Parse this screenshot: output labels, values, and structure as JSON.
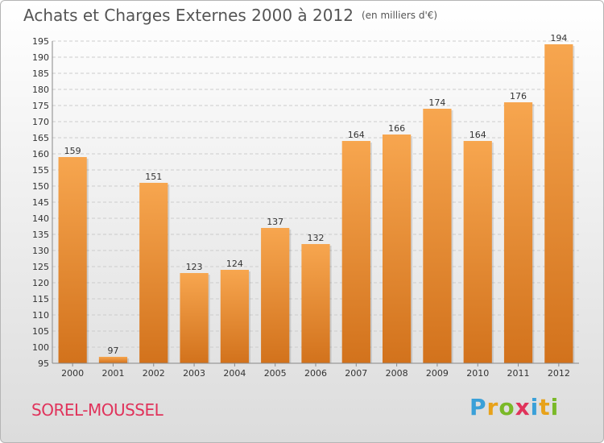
{
  "title": {
    "main": "Achats et Charges Externes 2000 à 2012",
    "unit": "(en milliers d'€)"
  },
  "commune": "SOREL-MOUSSEL",
  "logo": {
    "text": "Proxiti"
  },
  "colors": {
    "bar_top": "#f7a64f",
    "bar_bottom": "#d2721c",
    "title": "#555555",
    "commune": "#e0335b"
  },
  "chart_data": {
    "type": "bar",
    "title": "Achats et Charges Externes 2000 à 2012",
    "subtitle": "(en milliers d'€)",
    "xlabel": "",
    "ylabel": "",
    "categories": [
      "2000",
      "2001",
      "2002",
      "2003",
      "2004",
      "2005",
      "2006",
      "2007",
      "2008",
      "2009",
      "2010",
      "2011",
      "2012"
    ],
    "values": [
      159,
      97,
      151,
      123,
      124,
      137,
      132,
      164,
      166,
      174,
      164,
      176,
      194
    ],
    "ylim": [
      95,
      195
    ],
    "yticks": [
      95,
      100,
      105,
      110,
      115,
      120,
      125,
      130,
      135,
      140,
      145,
      150,
      155,
      160,
      165,
      170,
      175,
      180,
      185,
      190,
      195
    ],
    "grid": "horizontal",
    "legend": "none"
  }
}
